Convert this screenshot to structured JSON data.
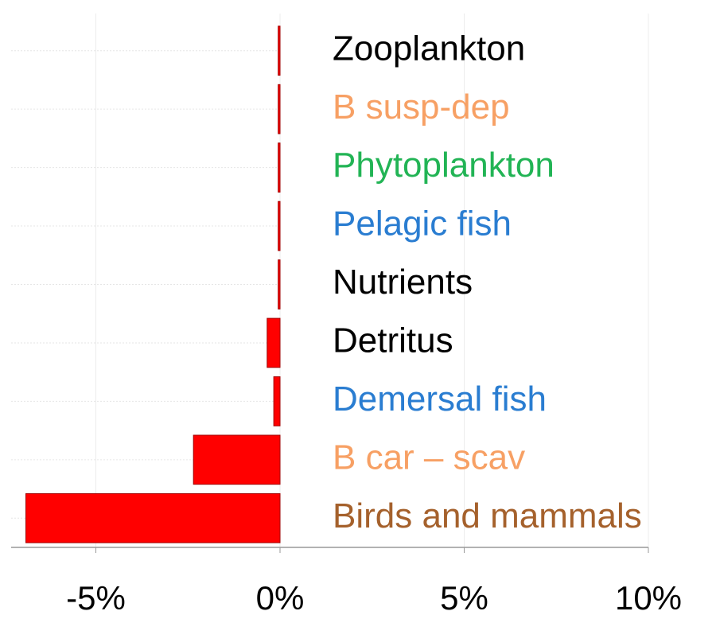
{
  "chart_data": {
    "type": "barh",
    "categories": [
      "Zooplankton",
      "B susp-dep",
      "Phytoplankton",
      "Pelagic fish",
      "Nutrients",
      "Detritus",
      "Demersal fish",
      "B car – scav",
      "Birds and mammals"
    ],
    "label_colors": [
      "#000000",
      "#f7a064",
      "#22b455",
      "#2a7dd1",
      "#000000",
      "#000000",
      "#2a7dd1",
      "#f7a064",
      "#a5612c"
    ],
    "values": [
      -0.05,
      -0.05,
      -0.05,
      -0.05,
      -0.05,
      -0.35,
      -0.17,
      -2.35,
      -6.9
    ],
    "color": "#ff0000",
    "xlim": [
      -7.3,
      10
    ],
    "xticks": [
      {
        "value": -5,
        "label": "-5%"
      },
      {
        "value": 0,
        "label": "0%"
      },
      {
        "value": 5,
        "label": "5%"
      },
      {
        "value": 10,
        "label": "10%"
      }
    ],
    "grid": true
  }
}
